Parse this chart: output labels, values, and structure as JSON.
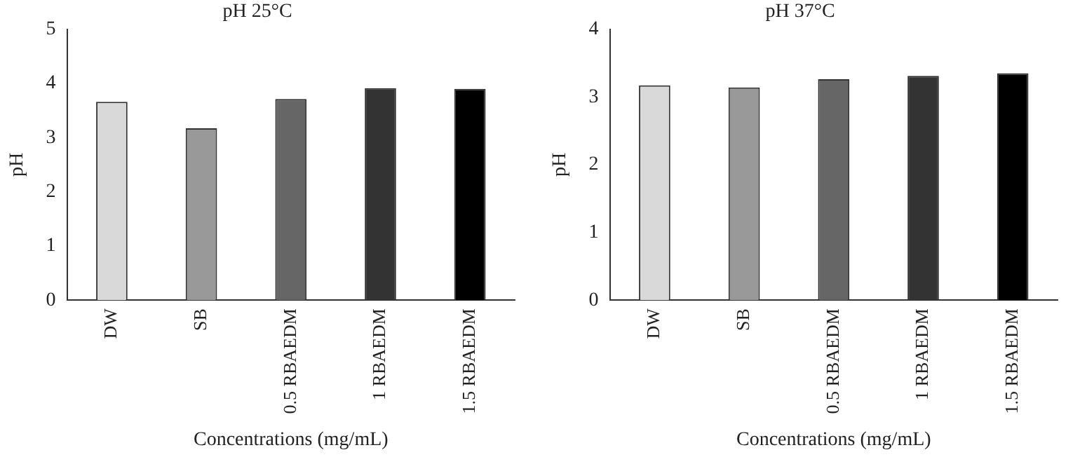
{
  "chart_data": [
    {
      "type": "bar",
      "title": "pH 25°C",
      "xlabel": "Concentrations (mg/mL)",
      "ylabel": "pH",
      "categories": [
        "DW",
        "SB",
        "0.5 RBAEDM",
        "1 RBAEDM",
        "1.5 RBAEDM"
      ],
      "values": [
        3.66,
        3.17,
        3.71,
        3.91,
        3.9
      ],
      "colors": [
        "#d9d9d9",
        "#999999",
        "#666666",
        "#333333",
        "#000000"
      ],
      "ylim": [
        0,
        5
      ],
      "yticks": [
        0,
        1,
        2,
        3,
        4,
        5
      ],
      "grid": false,
      "legend": false
    },
    {
      "type": "bar",
      "title": "pH 37°C",
      "xlabel": "Concentrations (mg/mL)",
      "ylabel": "pH",
      "categories": [
        "DW",
        "SB",
        "0.5 RBAEDM",
        "1 RBAEDM",
        "1.5 RBAEDM"
      ],
      "values": [
        3.17,
        3.14,
        3.26,
        3.31,
        3.35
      ],
      "colors": [
        "#d9d9d9",
        "#999999",
        "#666666",
        "#333333",
        "#000000"
      ],
      "ylim": [
        0,
        4
      ],
      "yticks": [
        0,
        1,
        2,
        3,
        4
      ],
      "grid": false,
      "legend": false
    }
  ]
}
